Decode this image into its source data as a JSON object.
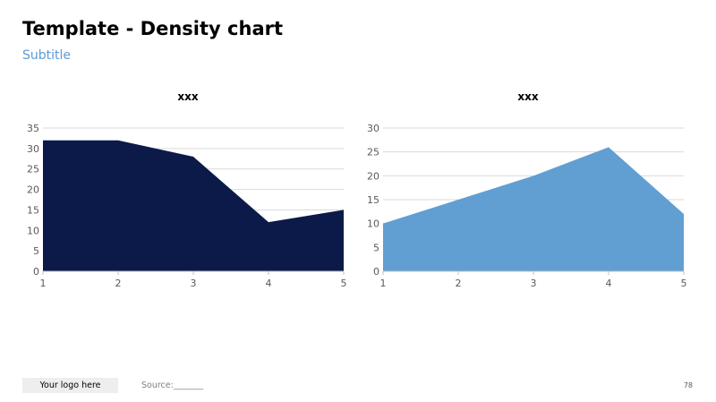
{
  "header": {
    "title": "Template - Density chart",
    "subtitle": "Subtitle"
  },
  "footer": {
    "logo_text": "Your logo here",
    "source_text": "Source:_______",
    "page_number": "78"
  },
  "chart_data": [
    {
      "type": "area",
      "title": "xxx",
      "xlabel": "",
      "ylabel": "",
      "x": [
        1,
        2,
        3,
        4,
        5
      ],
      "series": [
        {
          "values": [
            32,
            32,
            28,
            12,
            15
          ],
          "color": "#0c1a4a"
        }
      ],
      "ylim": [
        0,
        35
      ],
      "y_ticks": [
        0,
        5,
        10,
        15,
        20,
        25,
        30,
        35
      ],
      "grid": true,
      "legend": "none"
    },
    {
      "type": "area",
      "title": "xxx",
      "xlabel": "",
      "ylabel": "",
      "x": [
        1,
        2,
        3,
        4,
        5
      ],
      "series": [
        {
          "values": [
            10,
            15,
            20,
            26,
            12
          ],
          "color": "#619fd2"
        }
      ],
      "ylim": [
        0,
        30
      ],
      "y_ticks": [
        0,
        5,
        10,
        15,
        20,
        25,
        30
      ],
      "grid": true,
      "legend": "none"
    }
  ]
}
